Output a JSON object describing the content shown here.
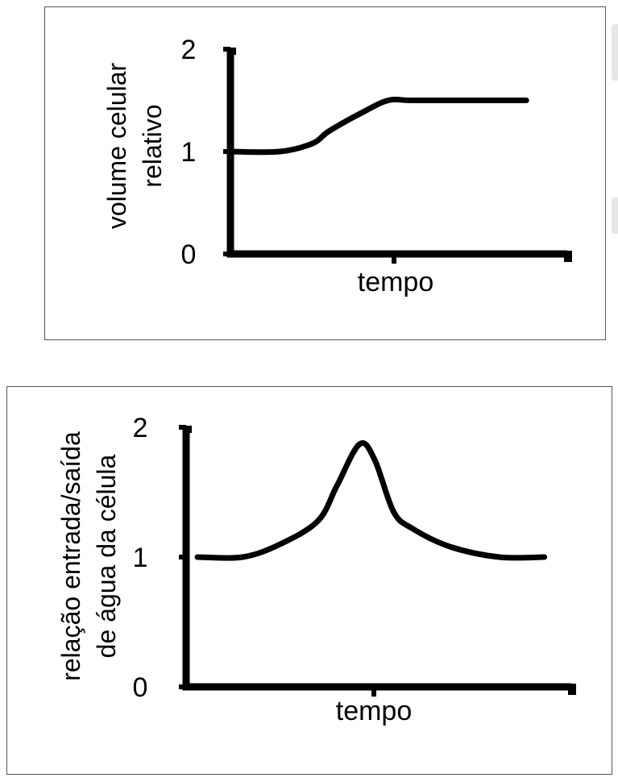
{
  "chart_data": [
    {
      "type": "line",
      "xlabel": "tempo",
      "ylabel": [
        "volume celular",
        "relativo"
      ],
      "yticks": [
        "0",
        "1",
        "2"
      ],
      "ylim": [
        0,
        2
      ],
      "xlim": [
        0,
        10
      ],
      "x": [
        0,
        1.5,
        2.5,
        3.0,
        4.0,
        4.8,
        5.5,
        7.0,
        9.0
      ],
      "series": [
        {
          "values": [
            1.0,
            1.0,
            1.08,
            1.2,
            1.38,
            1.5,
            1.5,
            1.5,
            1.5
          ]
        }
      ],
      "line_color": "#000000"
    },
    {
      "type": "line",
      "xlabel": "tempo",
      "ylabel": [
        "relação entrada/saída",
        "de água da célula"
      ],
      "yticks": [
        "0",
        "1",
        "2"
      ],
      "ylim": [
        0,
        2
      ],
      "xlim": [
        0,
        10
      ],
      "x": [
        0.3,
        1.5,
        2.5,
        3.5,
        4.0,
        4.6,
        5.0,
        5.5,
        6.0,
        7.0,
        8.3,
        9.5
      ],
      "series": [
        {
          "values": [
            1.0,
            1.0,
            1.1,
            1.28,
            1.55,
            1.87,
            1.75,
            1.35,
            1.22,
            1.08,
            1.0,
            1.0
          ]
        }
      ],
      "line_color": "#000000"
    }
  ]
}
